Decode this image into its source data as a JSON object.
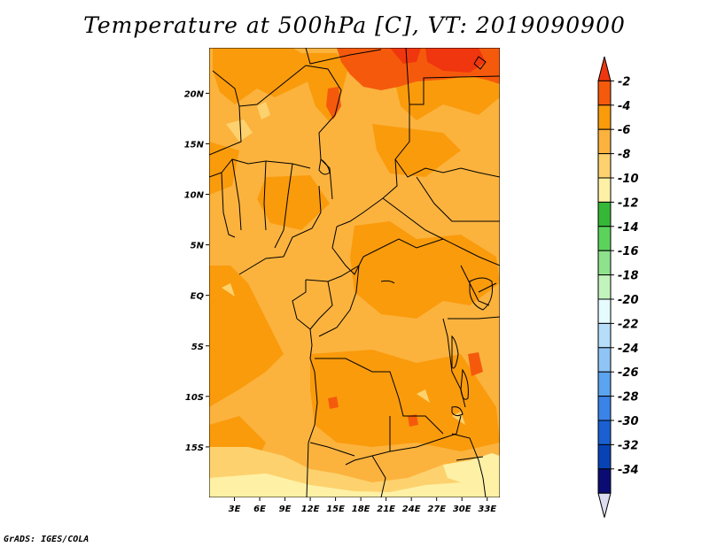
{
  "title": "Temperature at 500hPa [C], VT: 2019090900",
  "credit": "GrADS: IGES/COLA",
  "map": {
    "lon_range": [
      0,
      34.5
    ],
    "lat_range": [
      -20,
      24.5
    ],
    "lat_ticks": [
      {
        "value": 20,
        "label": "20N"
      },
      {
        "value": 15,
        "label": "15N"
      },
      {
        "value": 10,
        "label": "10N"
      },
      {
        "value": 5,
        "label": "5N"
      },
      {
        "value": 0,
        "label": "EQ"
      },
      {
        "value": -5,
        "label": "5S"
      },
      {
        "value": -10,
        "label": "10S"
      },
      {
        "value": -15,
        "label": "15S"
      }
    ],
    "lon_ticks": [
      {
        "value": 3,
        "label": "3E"
      },
      {
        "value": 6,
        "label": "6E"
      },
      {
        "value": 9,
        "label": "9E"
      },
      {
        "value": 12,
        "label": "12E"
      },
      {
        "value": 15,
        "label": "15E"
      },
      {
        "value": 18,
        "label": "18E"
      },
      {
        "value": 21,
        "label": "21E"
      },
      {
        "value": 24,
        "label": "24E"
      },
      {
        "value": 27,
        "label": "27E"
      },
      {
        "value": 30,
        "label": "30E"
      },
      {
        "value": 33,
        "label": "33E"
      }
    ],
    "background_color": "#fbb33e"
  },
  "colorbar": {
    "labels": [
      "-2",
      "-4",
      "-6",
      "-8",
      "-10",
      "-12",
      "-14",
      "-16",
      "-18",
      "-20",
      "-22",
      "-24",
      "-26",
      "-28",
      "-30",
      "-32",
      "-34"
    ],
    "colors": [
      "#f0360e",
      "#f55a0c",
      "#fa9b0c",
      "#fbb33e",
      "#fdd26e",
      "#fef1a6",
      "#35b837",
      "#5bd35b",
      "#8ee28c",
      "#c3f3bc",
      "#e6fbfe",
      "#b6defa",
      "#8fc5f5",
      "#5ba4ef",
      "#3a83e7",
      "#1a60d2",
      "#0843b5",
      "#0b0c73",
      "#dcdcf0"
    ]
  }
}
